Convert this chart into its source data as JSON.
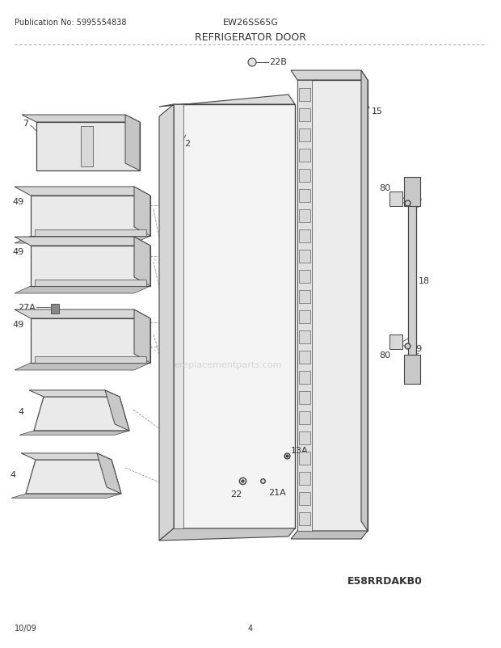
{
  "title_pub": "Publication No: 5995554838",
  "title_model": "EW26SS65G",
  "title_diagram": "REFRIGERATOR DOOR",
  "footer_left": "10/09",
  "footer_center": "4",
  "footer_right": "E58RRDAKB0",
  "watermark": "ereplacementparts.com",
  "bg_color": "#ffffff",
  "lc": "#444444",
  "fc_light": "#f0f0f0",
  "fc_mid": "#d8d8d8",
  "fc_dark": "#b8b8b8"
}
